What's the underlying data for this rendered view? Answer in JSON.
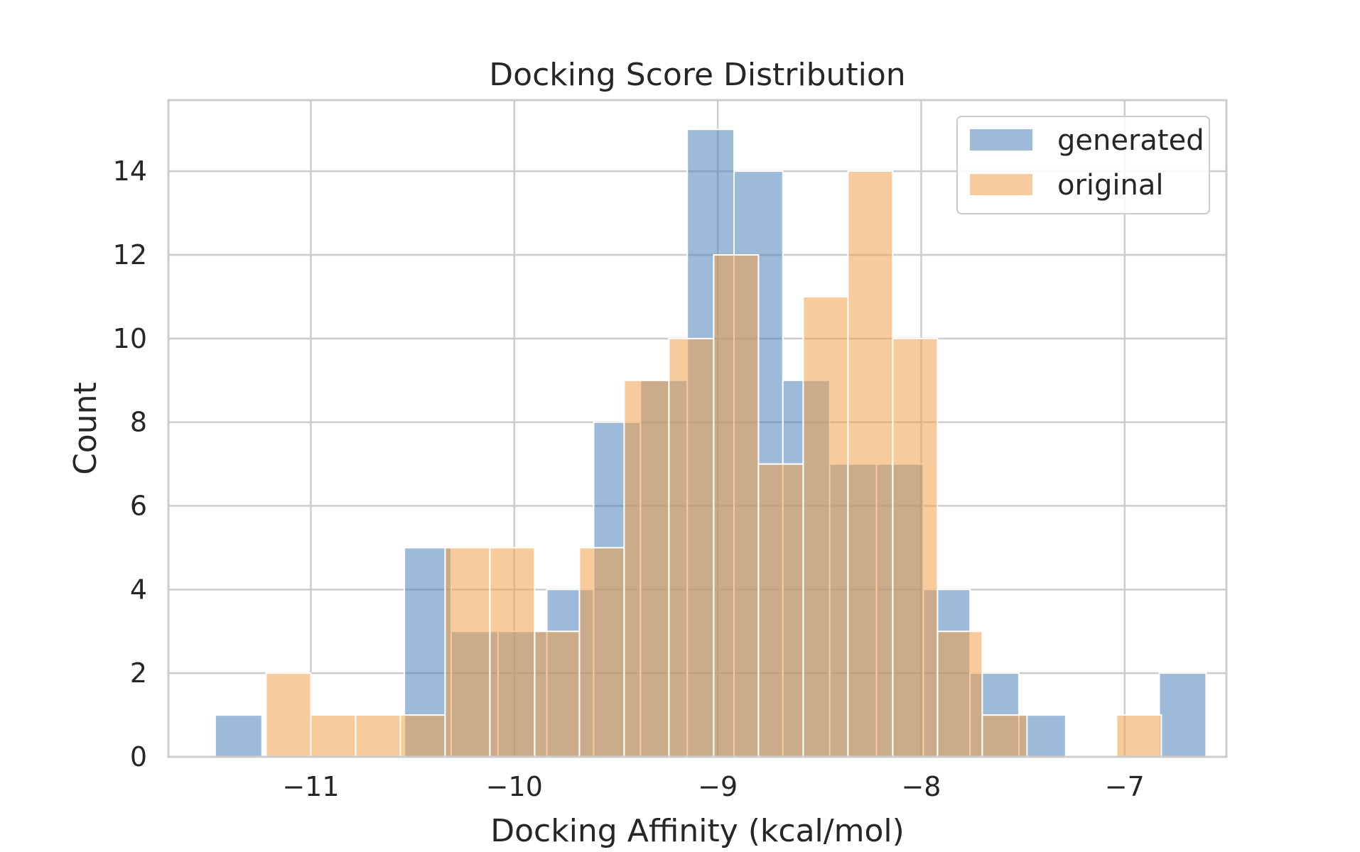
{
  "chart_data": {
    "type": "bar",
    "title": "Docking Score Distribution",
    "xlabel": "Docking Affinity (kcal/mol)",
    "ylabel": "Count",
    "xlim": [
      -11.7,
      -6.5
    ],
    "ylim": [
      0,
      15.7
    ],
    "xticks": [
      -11,
      -10,
      -9,
      -8,
      -7
    ],
    "xtick_labels": [
      "−11",
      "−10",
      "−9",
      "−8",
      "−7"
    ],
    "yticks": [
      0,
      2,
      4,
      6,
      8,
      10,
      12,
      14
    ],
    "ytick_labels": [
      "0",
      "2",
      "4",
      "6",
      "8",
      "10",
      "12",
      "14"
    ],
    "grid": true,
    "legend_position": "top-right",
    "series": [
      {
        "name": "generated",
        "color": "#4C81B8",
        "bins": [
          {
            "x0": -11.47,
            "x1": -11.24,
            "count": 1
          },
          {
            "x0": -11.24,
            "x1": -11.0,
            "count": 0
          },
          {
            "x0": -11.0,
            "x1": -10.77,
            "count": 0
          },
          {
            "x0": -10.77,
            "x1": -10.54,
            "count": 0
          },
          {
            "x0": -10.54,
            "x1": -10.31,
            "count": 5
          },
          {
            "x0": -10.31,
            "x1": -10.08,
            "count": 3
          },
          {
            "x0": -10.08,
            "x1": -9.84,
            "count": 3
          },
          {
            "x0": -9.84,
            "x1": -9.61,
            "count": 4
          },
          {
            "x0": -9.61,
            "x1": -9.38,
            "count": 8
          },
          {
            "x0": -9.38,
            "x1": -9.15,
            "count": 9
          },
          {
            "x0": -9.15,
            "x1": -8.92,
            "count": 15
          },
          {
            "x0": -8.92,
            "x1": -8.68,
            "count": 14
          },
          {
            "x0": -8.68,
            "x1": -8.45,
            "count": 9
          },
          {
            "x0": -8.45,
            "x1": -8.22,
            "count": 7
          },
          {
            "x0": -8.22,
            "x1": -7.99,
            "count": 7
          },
          {
            "x0": -7.99,
            "x1": -7.76,
            "count": 4
          },
          {
            "x0": -7.76,
            "x1": -7.52,
            "count": 2
          },
          {
            "x0": -7.52,
            "x1": -7.29,
            "count": 1
          },
          {
            "x0": -7.29,
            "x1": -7.06,
            "count": 0
          },
          {
            "x0": -7.06,
            "x1": -6.83,
            "count": 0
          },
          {
            "x0": -6.83,
            "x1": -6.6,
            "count": 2
          }
        ]
      },
      {
        "name": "original",
        "color": "#F0A04B",
        "bins": [
          {
            "x0": -11.22,
            "x1": -11.0,
            "count": 2
          },
          {
            "x0": -11.0,
            "x1": -10.78,
            "count": 1
          },
          {
            "x0": -10.78,
            "x1": -10.56,
            "count": 1
          },
          {
            "x0": -10.56,
            "x1": -10.34,
            "count": 1
          },
          {
            "x0": -10.34,
            "x1": -10.12,
            "count": 5
          },
          {
            "x0": -10.12,
            "x1": -9.9,
            "count": 5
          },
          {
            "x0": -9.9,
            "x1": -9.68,
            "count": 3
          },
          {
            "x0": -9.68,
            "x1": -9.46,
            "count": 5
          },
          {
            "x0": -9.46,
            "x1": -9.24,
            "count": 9
          },
          {
            "x0": -9.24,
            "x1": -9.02,
            "count": 10
          },
          {
            "x0": -9.02,
            "x1": -8.8,
            "count": 12
          },
          {
            "x0": -8.8,
            "x1": -8.58,
            "count": 7
          },
          {
            "x0": -8.58,
            "x1": -8.36,
            "count": 11
          },
          {
            "x0": -8.36,
            "x1": -8.14,
            "count": 14
          },
          {
            "x0": -8.14,
            "x1": -7.92,
            "count": 10
          },
          {
            "x0": -7.92,
            "x1": -7.7,
            "count": 3
          },
          {
            "x0": -7.7,
            "x1": -7.48,
            "count": 1
          },
          {
            "x0": -7.48,
            "x1": -7.26,
            "count": 0
          },
          {
            "x0": -7.26,
            "x1": -7.04,
            "count": 0
          },
          {
            "x0": -7.04,
            "x1": -6.82,
            "count": 1
          }
        ]
      }
    ]
  }
}
